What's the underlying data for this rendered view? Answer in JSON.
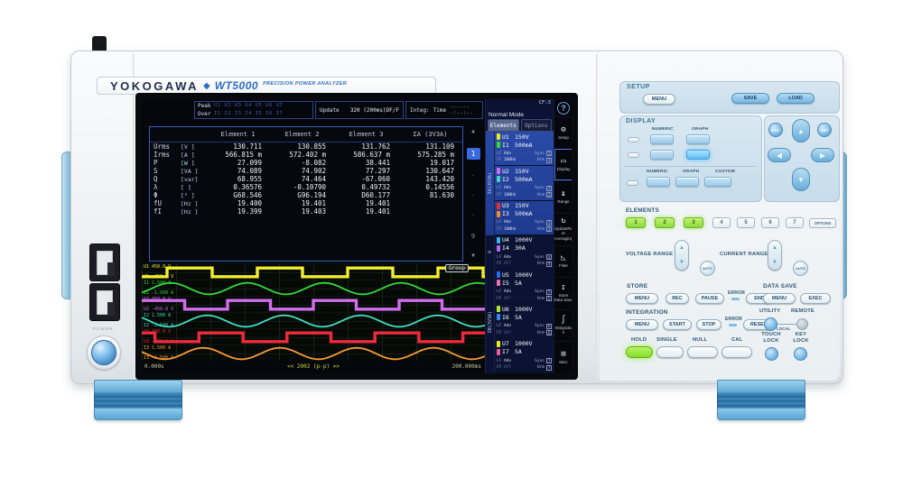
{
  "device": {
    "brand": "YOKOGAWA",
    "diamond": "◆",
    "model": "WT5000",
    "subtitle": "PRECISION POWER ANALYZER",
    "power_label": "POWER"
  },
  "screen": {
    "help_glyph": "?",
    "header": {
      "peak_label": "Peak",
      "over_label": "Over",
      "peak_channels": "U1 U2 U3 U4 U5 U6 U7",
      "over_channels": "I1 I2 I3 I4 I5 I6 I7",
      "update_label": "Update",
      "update_value": "320 (200ms)DF/F",
      "integ_label": "Integ:",
      "time_label": "Time",
      "time_value": "-------:--:--"
    },
    "table": {
      "headers": [
        "Element 1",
        "Element 2",
        "Element 3",
        "ΣA (3V3A)"
      ],
      "rows": [
        {
          "name": "Urms",
          "unit": "[V  ]",
          "values": [
            "130.711",
            "130.855",
            "131.762",
            "131.109"
          ]
        },
        {
          "name": "Irms",
          "unit": "[A  ]",
          "values": [
            "566.815 m",
            "572.402 m",
            "586.637 m",
            "575.285 m"
          ]
        },
        {
          "name": "P",
          "unit": "[W  ]",
          "values": [
            "27.099",
            "-8.082",
            "38.441",
            "19.017"
          ]
        },
        {
          "name": "S",
          "unit": "[VA ]",
          "values": [
            "74.089",
            "74.902",
            "77.297",
            "130.647"
          ]
        },
        {
          "name": "Q",
          "unit": "[var]",
          "values": [
            "68.955",
            "74.464",
            "-67.060",
            "143.420"
          ]
        },
        {
          "name": "λ",
          "unit": "[   ]",
          "values": [
            "0.36576",
            "-0.10790",
            "0.49732",
            "0.14556"
          ]
        },
        {
          "name": "Φ",
          "unit": "[°  ]",
          "values": [
            "G68.546",
            "G96.194",
            "D60.177",
            "81.630"
          ]
        },
        {
          "name": "fU",
          "unit": "[Hz ]",
          "values": [
            "19.400",
            "19.401",
            "19.401",
            ""
          ]
        },
        {
          "name": "fI",
          "unit": "[Hz ]",
          "values": [
            "19.399",
            "19.403",
            "19.401",
            ""
          ]
        }
      ],
      "pager": {
        "up": "▲",
        "down": "▼",
        "current": "1",
        "last": "9",
        "dot": "·"
      }
    },
    "waveform": {
      "group_label": "Group",
      "t_start": "0.000s",
      "t_center": "<< 2002 (p-p) >>",
      "t_end": "200.000ms",
      "traces": [
        {
          "type": "square",
          "color": "#f2ee2e",
          "cycles": 3.8,
          "phase": 0.72,
          "label_top": "U1 450.0 V",
          "label_bottom": "U1 -450.0 V"
        },
        {
          "type": "sine",
          "color": "#35d83a",
          "cycles": 4.47,
          "phase": 0.126,
          "label_top": "I1 1.500 A",
          "label_bottom": "I1 -1.500 A"
        },
        {
          "type": "square",
          "color": "#d36df0",
          "cycles": 4.0,
          "phase": 0.0,
          "label_top": "U2 450.0 V",
          "label_bottom": "U2 -450.0 V"
        },
        {
          "type": "sine",
          "color": "#42dcc2",
          "cycles": 4.47,
          "phase": 0.603,
          "label_top": "I2 1.500 A",
          "label_bottom": "I2 -1.500 A"
        },
        {
          "type": "square",
          "color": "#f02a3a",
          "cycles": 3.9,
          "phase": 0.35,
          "label_top": "U3 450.0 V",
          "label_bottom": "U3 -450.0 V"
        },
        {
          "type": "sine",
          "color": "#f79b37",
          "cycles": 4.47,
          "phase": 0.55,
          "label_top": "I3 1.500 A",
          "label_bottom": "I3 -1.500 A"
        }
      ]
    },
    "sidebar": {
      "cf": "CF:3",
      "mode": "Normal Mode",
      "tabs": [
        "Elements",
        "Options"
      ],
      "labels": {
        "lf": "LF",
        "ff": "FF",
        "sync": "Sync",
        "hrm": "Hrm"
      },
      "groups": [
        {
          "label": "ΣA(3V3A)",
          "count": 3,
          "highlight": true
        },
        {
          "label": "4",
          "count": 1,
          "highlight": false
        },
        {
          "label": "ΣB(3V3A)",
          "count": 3,
          "highlight": false
        }
      ],
      "elements": [
        {
          "num": "1",
          "u": "U1",
          "u_range": "150V",
          "u_color": "#e8e820",
          "i": "I1",
          "i_range": "500mA",
          "i_color": "#35d83a",
          "adv": "Adv",
          "freq": "100Hz"
        },
        {
          "num": "2",
          "u": "U2",
          "u_range": "150V",
          "u_color": "#d36df0",
          "i": "I2",
          "i_range": "500mA",
          "i_color": "#3fd8c0",
          "adv": "Adv",
          "freq": "100Hz"
        },
        {
          "num": "3",
          "u": "U3",
          "u_range": "150V",
          "u_color": "#ee2a3a",
          "i": "I3",
          "i_range": "500mA",
          "i_color": "#f08c2a",
          "adv": "Adv",
          "freq": "100Hz"
        },
        {
          "num": "4",
          "u": "U4",
          "u_range": "1000V",
          "u_color": "#3ab4f0",
          "i": "I4",
          "i_range": "30A",
          "i_color": "#b06df0",
          "adv": "Adv",
          "freq": "OFF"
        },
        {
          "num": "5",
          "u": "U5",
          "u_range": "1000V",
          "u_color": "#2a6df0",
          "i": "I5",
          "i_range": "5A",
          "i_color": "#f06daa",
          "adv": "Adv",
          "freq": "OFF"
        },
        {
          "num": "6",
          "u": "U6",
          "u_range": "1000V",
          "u_color": "#b8e82a",
          "i": "I6",
          "i_range": "5A",
          "i_color": "#3a8af0",
          "adv": "Adv",
          "freq": "OFF"
        },
        {
          "num": "7",
          "u": "U7",
          "u_range": "1000V",
          "u_color": "#e8e820",
          "i": "I7",
          "i_range": "5A",
          "i_color": "#f05a9a",
          "adv": "Adv",
          "freq": "OFF"
        }
      ]
    },
    "softkeys": [
      {
        "name": "setup",
        "glyph": "⚙",
        "label": "Setup"
      },
      {
        "name": "display",
        "glyph": "▭",
        "label": "Display",
        "active": true
      },
      {
        "name": "range",
        "glyph": "↨",
        "label": "Range"
      },
      {
        "name": "update-rate",
        "glyph": "↻",
        "label": "UpdateRate\nAveraging"
      },
      {
        "name": "filter",
        "glyph": "◺",
        "label": "Filter"
      },
      {
        "name": "store",
        "glyph": "↧",
        "label": "Store\nData Save"
      },
      {
        "name": "integration",
        "glyph": "∫",
        "label": "Integration"
      },
      {
        "name": "misc",
        "glyph": "⊞",
        "label": "Misc"
      }
    ]
  },
  "panel": {
    "setup": {
      "label": "SETUP",
      "menu": "MENU",
      "save": "SAVE",
      "load": "LOAD"
    },
    "display": {
      "label": "DISPLAY",
      "row1_labels": [
        "NUMERIC",
        "GRAPH"
      ],
      "row3_labels": [
        "NUMERIC",
        "GRAPH",
        "CUSTOM"
      ]
    },
    "nav": {
      "esc": "ESC",
      "set": "SET",
      "up": "▲",
      "down": "▼",
      "left": "◀",
      "right": "▶"
    },
    "elements": {
      "label": "ELEMENTS",
      "buttons": [
        "1",
        "2",
        "3",
        "4",
        "5",
        "6",
        "7"
      ],
      "active": [
        "1",
        "2",
        "3"
      ],
      "options": "OPTIONS"
    },
    "ranges": {
      "voltage_label": "VOLTAGE RANGE",
      "current_label": "CURRENT RANGE",
      "auto": "AUTO",
      "up_glyph": "▲",
      "down_glyph": "▼"
    },
    "store": {
      "label": "STORE",
      "menu": "MENU",
      "rec": "REC",
      "pause": "PAUSE",
      "error": "ERROR",
      "end": "END"
    },
    "data_save": {
      "label": "DATA SAVE",
      "menu": "MENU",
      "exec": "EXEC"
    },
    "integration": {
      "label": "INTEGRATION",
      "menu": "MENU",
      "start": "START",
      "stop": "STOP",
      "error": "ERROR",
      "reset": "RESET"
    },
    "utility": {
      "label": "UTILITY",
      "local": "LOCAL",
      "remote": "REMOTE"
    },
    "bottom": {
      "hold": "HOLD",
      "single": "SINGLE",
      "null": "NULL",
      "cal": "CAL",
      "touch_lock": "TOUCH\nLOCK",
      "key_lock": "KEY\nLOCK"
    }
  }
}
